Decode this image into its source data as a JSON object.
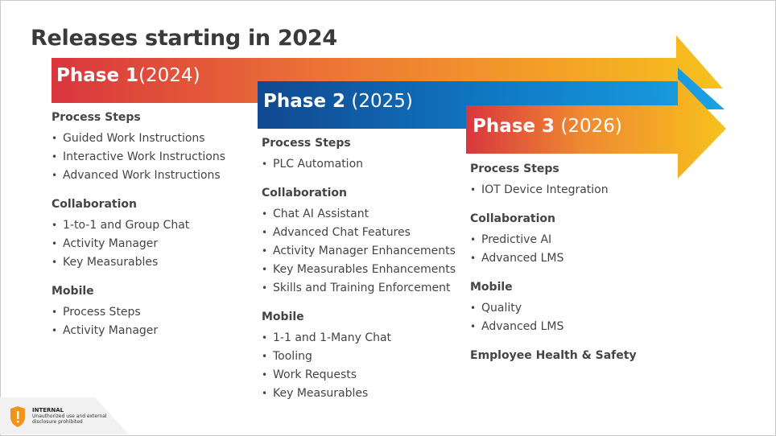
{
  "title": "Releases starting in 2024",
  "badge": {
    "title": "INTERNAL",
    "subtitle": "Unauthorized use and external disclosure prohibited"
  },
  "phases": [
    {
      "name": "Phase 1",
      "year": "(2024)",
      "sections": [
        {
          "title": "Process Steps",
          "items": [
            "Guided Work Instructions",
            "Interactive Work Instructions",
            "Advanced Work Instructions"
          ]
        },
        {
          "title": "Collaboration",
          "items": [
            "1-to-1 and Group Chat",
            "Activity Manager",
            "Key Measurables"
          ]
        },
        {
          "title": "Mobile",
          "items": [
            "Process Steps",
            "Activity Manager"
          ]
        }
      ]
    },
    {
      "name": "Phase 2",
      "year": "(2025)",
      "sections": [
        {
          "title": "Process Steps",
          "items": [
            "PLC Automation"
          ]
        },
        {
          "title": "Collaboration",
          "items": [
            "Chat AI Assistant",
            "Advanced Chat Features",
            "Activity Manager Enhancements",
            "Key Measurables Enhancements",
            "Skills and Training Enforcement"
          ]
        },
        {
          "title": "Mobile",
          "items": [
            "1-1 and 1-Many Chat",
            "Tooling",
            "Work Requests",
            "Key Measurables"
          ]
        }
      ]
    },
    {
      "name": "Phase 3",
      "year": "(2026)",
      "sections": [
        {
          "title": "Process Steps",
          "items": [
            "IOT Device Integration"
          ]
        },
        {
          "title": "Collaboration",
          "items": [
            "Predictive AI",
            "Advanced LMS"
          ]
        },
        {
          "title": "Mobile",
          "items": [
            "Quality",
            "Advanced LMS"
          ]
        },
        {
          "title": "Employee Health & Safety",
          "items": []
        }
      ]
    }
  ]
}
